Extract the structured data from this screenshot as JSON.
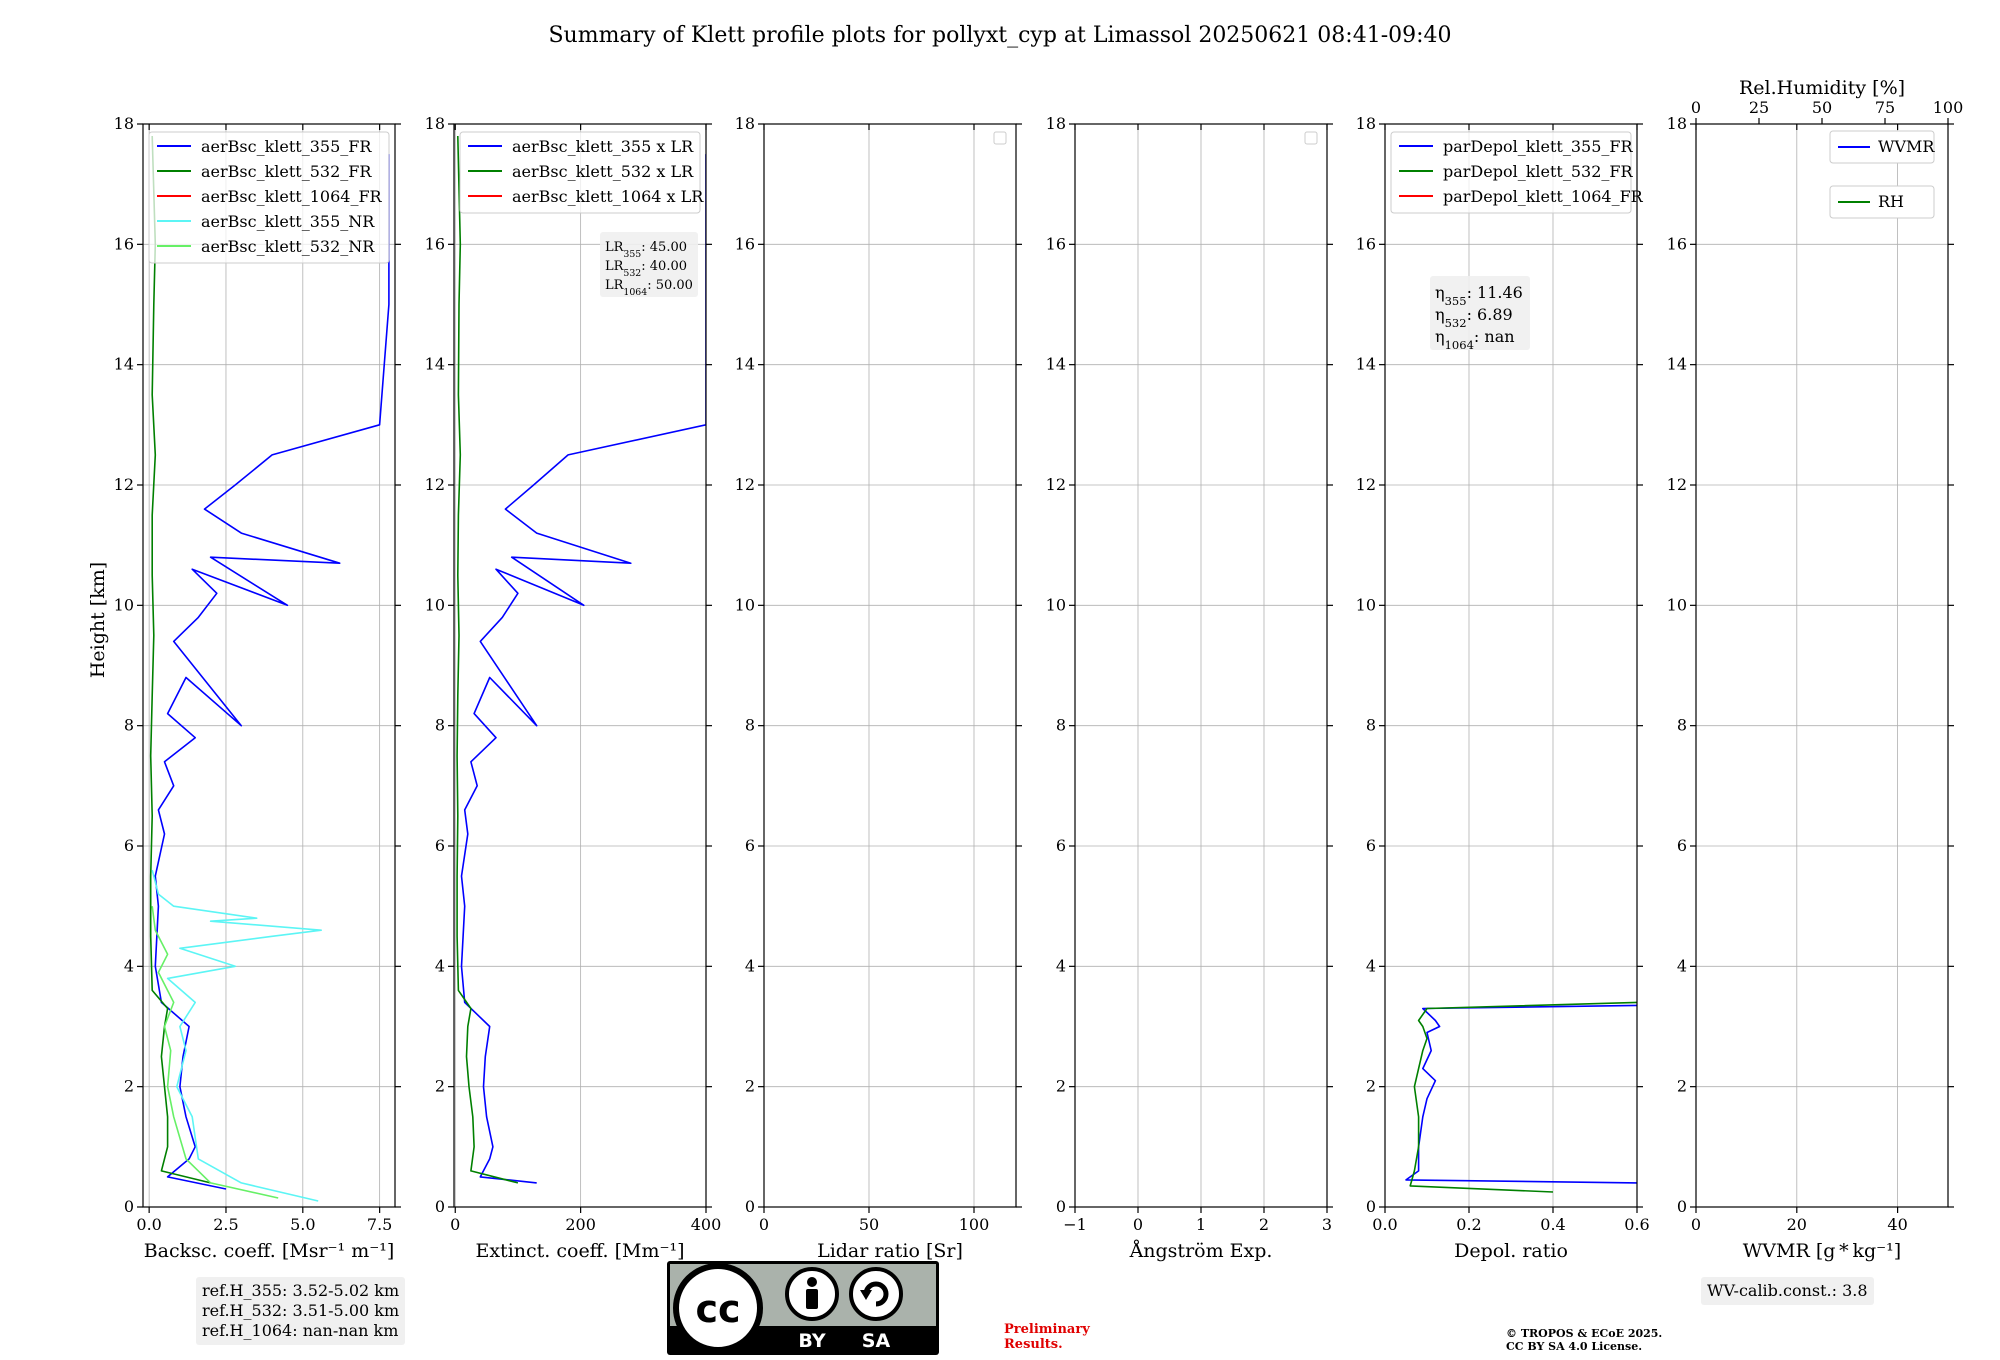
{
  "title": "Summary of Klett profile plots for pollyxt_cyp at Limassol 20250621 08:41-09:40",
  "y_axis_label": "Height [km]",
  "chart_data": [
    {
      "id": "backscatter",
      "type": "line",
      "xlabel": "Backsc. coeff. [Msr⁻¹ m⁻¹]",
      "xlim": [
        -0.2,
        8.0
      ],
      "xticks": [
        0.0,
        2.5,
        5.0,
        7.5
      ],
      "xtick_labels": [
        "0.0",
        "2.5",
        "5.0",
        "7.5"
      ],
      "ylim": [
        0,
        18
      ],
      "yticks": [
        0,
        2,
        4,
        6,
        8,
        10,
        12,
        14,
        16,
        18
      ],
      "grid": true,
      "legend_position": "top",
      "series": [
        {
          "name": "aerBsc_klett_355_FR",
          "color": "#0000ff",
          "x": [
            2.5,
            0.6,
            1.3,
            1.5,
            1.2,
            1.0,
            1.1,
            1.3,
            0.4,
            0.2,
            0.3,
            0.2,
            0.5,
            0.3,
            0.8,
            0.5,
            1.5,
            0.6,
            1.2,
            3.0,
            0.8,
            1.6,
            2.2,
            1.4,
            4.5,
            2.0,
            6.2,
            3.0,
            1.8,
            2.8,
            4.0,
            7.5,
            7.8,
            7.8
          ],
          "y": [
            0.3,
            0.5,
            0.8,
            1.0,
            1.5,
            2.0,
            2.5,
            3.0,
            3.4,
            4.0,
            5.0,
            5.5,
            6.2,
            6.6,
            7.0,
            7.4,
            7.8,
            8.2,
            8.8,
            8.0,
            9.4,
            9.8,
            10.2,
            10.6,
            10.0,
            10.8,
            10.7,
            11.2,
            11.6,
            12.0,
            12.5,
            13.0,
            15.0,
            17.5
          ]
        },
        {
          "name": "aerBsc_klett_532_FR",
          "color": "#008000",
          "x": [
            2.0,
            0.4,
            0.6,
            0.6,
            0.5,
            0.4,
            0.5,
            0.6,
            0.1,
            0.05,
            0.05,
            0.1,
            0.05,
            0.1,
            0.15,
            0.1,
            0.1,
            0.2,
            0.1,
            0.15,
            0.2,
            0.1
          ],
          "y": [
            0.4,
            0.6,
            1.0,
            1.5,
            2.0,
            2.5,
            3.0,
            3.3,
            3.6,
            4.5,
            5.5,
            6.5,
            7.5,
            8.5,
            9.5,
            10.5,
            11.5,
            12.5,
            13.5,
            15.0,
            16.0,
            17.8
          ]
        },
        {
          "name": "aerBsc_klett_1064_FR",
          "color": "#ff0000",
          "x": [],
          "y": []
        },
        {
          "name": "aerBsc_klett_355_NR",
          "color": "#5cf5f5",
          "x": [
            5.5,
            3.0,
            1.6,
            1.4,
            0.9,
            1.2,
            1.0,
            1.5,
            0.6,
            2.8,
            1.0,
            4.0,
            5.6,
            2.0,
            3.5,
            0.8,
            0.3,
            0.1
          ],
          "y": [
            0.1,
            0.4,
            0.8,
            1.5,
            2.0,
            2.6,
            3.0,
            3.4,
            3.8,
            4.0,
            4.3,
            4.5,
            4.6,
            4.75,
            4.8,
            5.0,
            5.2,
            5.6
          ]
        },
        {
          "name": "aerBsc_klett_532_NR",
          "color": "#66f066",
          "x": [
            4.2,
            2.0,
            1.2,
            0.8,
            0.6,
            0.7,
            0.5,
            0.8,
            0.3,
            0.6,
            0.2,
            0.1
          ],
          "y": [
            0.15,
            0.4,
            0.8,
            1.5,
            2.0,
            2.6,
            3.0,
            3.4,
            3.9,
            4.2,
            4.6,
            5.0
          ]
        }
      ]
    },
    {
      "id": "extinction",
      "type": "line",
      "xlabel": "Extinct. coeff. [Mm⁻¹]",
      "xlim": [
        -2,
        400
      ],
      "xticks": [
        0,
        200,
        400
      ],
      "xtick_labels": [
        "0",
        "200",
        "400"
      ],
      "ylim": [
        0,
        18
      ],
      "yticks": [
        0,
        2,
        4,
        6,
        8,
        10,
        12,
        14,
        16,
        18
      ],
      "grid": true,
      "legend_position": "top",
      "series": [
        {
          "name": "aerBsc_klett_355 x LR",
          "color": "#0000ff",
          "x": [
            130,
            40,
            55,
            60,
            50,
            45,
            48,
            55,
            15,
            10,
            15,
            10,
            20,
            15,
            35,
            25,
            65,
            30,
            55,
            130,
            40,
            75,
            100,
            65,
            205,
            90,
            280,
            130,
            80,
            125,
            180,
            400,
            400,
            400
          ],
          "y": [
            0.4,
            0.5,
            0.8,
            1.0,
            1.5,
            2.0,
            2.5,
            3.0,
            3.4,
            4.0,
            5.0,
            5.5,
            6.2,
            6.6,
            7.0,
            7.4,
            7.8,
            8.2,
            8.8,
            8.0,
            9.4,
            9.8,
            10.2,
            10.6,
            10.0,
            10.8,
            10.7,
            11.2,
            11.6,
            12.0,
            12.5,
            13.0,
            15.0,
            17.5
          ]
        },
        {
          "name": "aerBsc_klett_532 x LR",
          "color": "#008000",
          "x": [
            100,
            25,
            30,
            28,
            22,
            18,
            20,
            25,
            5,
            3,
            3,
            4,
            3,
            4,
            6,
            4,
            5,
            8,
            5,
            6,
            8,
            4
          ],
          "y": [
            0.4,
            0.6,
            1.0,
            1.5,
            2.0,
            2.5,
            3.0,
            3.3,
            3.6,
            4.5,
            5.5,
            6.5,
            7.5,
            8.5,
            9.5,
            10.5,
            11.5,
            12.5,
            13.5,
            15.0,
            16.0,
            17.8
          ]
        },
        {
          "name": "aerBsc_klett_1064 x LR",
          "color": "#ff0000",
          "x": [],
          "y": []
        }
      ],
      "annotation": [
        "LR355: 45.00",
        "LR532: 40.00",
        "LR1064: 50.00"
      ]
    },
    {
      "id": "lidar-ratio",
      "type": "line",
      "xlabel": "Lidar ratio [Sr]",
      "xlim": [
        0,
        120
      ],
      "xticks": [
        0,
        50,
        100
      ],
      "xtick_labels": [
        "0",
        "50",
        "100"
      ],
      "ylim": [
        0,
        18
      ],
      "yticks": [
        0,
        2,
        4,
        6,
        8,
        10,
        12,
        14,
        16,
        18
      ],
      "grid": true,
      "legend_position": "top-right",
      "series": []
    },
    {
      "id": "angstrom",
      "type": "line",
      "xlabel": "Ångström Exp.",
      "xlim": [
        -1,
        3
      ],
      "xticks": [
        -1,
        0,
        1,
        2,
        3
      ],
      "xtick_labels": [
        "−1",
        "0",
        "1",
        "2",
        "3"
      ],
      "ylim": [
        0,
        18
      ],
      "yticks": [
        0,
        2,
        4,
        6,
        8,
        10,
        12,
        14,
        16,
        18
      ],
      "grid": true,
      "legend_position": "top-right",
      "series": []
    },
    {
      "id": "depol",
      "type": "line",
      "xlabel": "Depol. ratio",
      "xlim": [
        0.0,
        0.6
      ],
      "xticks": [
        0.0,
        0.2,
        0.4,
        0.6
      ],
      "xtick_labels": [
        "0.0",
        "0.2",
        "0.4",
        "0.6"
      ],
      "ylim": [
        0,
        18
      ],
      "yticks": [
        0,
        2,
        4,
        6,
        8,
        10,
        12,
        14,
        16,
        18
      ],
      "grid": true,
      "legend_position": "top",
      "series": [
        {
          "name": "parDepol_klett_355_FR",
          "color": "#0000ff",
          "x": [
            0.6,
            0.05,
            0.08,
            0.08,
            0.09,
            0.1,
            0.12,
            0.09,
            0.11,
            0.1,
            0.13,
            0.12,
            0.09,
            0.6
          ],
          "y": [
            0.4,
            0.45,
            0.6,
            1.0,
            1.5,
            1.8,
            2.1,
            2.3,
            2.6,
            2.9,
            3.0,
            3.1,
            3.3,
            3.35
          ]
        },
        {
          "name": "parDepol_klett_532_FR",
          "color": "#008000",
          "x": [
            0.4,
            0.06,
            0.07,
            0.08,
            0.08,
            0.07,
            0.08,
            0.09,
            0.1,
            0.09,
            0.08,
            0.1,
            0.6
          ],
          "y": [
            0.25,
            0.35,
            0.6,
            1.0,
            1.5,
            2.0,
            2.3,
            2.6,
            2.8,
            3.0,
            3.1,
            3.3,
            3.4
          ]
        },
        {
          "name": "parDepol_klett_1064_FR",
          "color": "#ff0000",
          "x": [],
          "y": []
        }
      ],
      "annotation": [
        "η355: 11.46",
        "η532: 6.89",
        "η1064: nan"
      ]
    },
    {
      "id": "wvmr",
      "type": "line",
      "xlabel": "WVMR [g * kg⁻¹]",
      "xlim": [
        0,
        50
      ],
      "xticks": [
        0,
        20,
        40
      ],
      "xtick_labels": [
        "0",
        "20",
        "40"
      ],
      "top_xlabel": "Rel.Humidity [%]",
      "top_xlim": [
        0,
        100
      ],
      "top_xticks": [
        0,
        25,
        50,
        75,
        100
      ],
      "top_xtick_labels": [
        "0",
        "25",
        "50",
        "75",
        "100"
      ],
      "ylim": [
        0,
        18
      ],
      "yticks": [
        0,
        2,
        4,
        6,
        8,
        10,
        12,
        14,
        16,
        18
      ],
      "grid": true,
      "legend_position": "top-right",
      "series": [
        {
          "name": "WVMR",
          "color": "#0000ff",
          "x": [],
          "y": []
        },
        {
          "name": "RH",
          "color": "#008000",
          "x": [],
          "y": []
        }
      ]
    }
  ],
  "ref_heights": [
    "ref.H_355: 3.52-5.02 km",
    "ref.H_532: 3.51-5.00 km",
    "ref.H_1064: nan-nan km"
  ],
  "wv_calib": "WV-calib.const.: 3.8",
  "preliminary": [
    "Preliminary",
    "Results."
  ],
  "copyright": [
    "© TROPOS & ECoE 2025.",
    "CC BY SA 4.0 License."
  ],
  "license_badge": {
    "by": "BY",
    "sa": "SA",
    "cc": "cc"
  }
}
